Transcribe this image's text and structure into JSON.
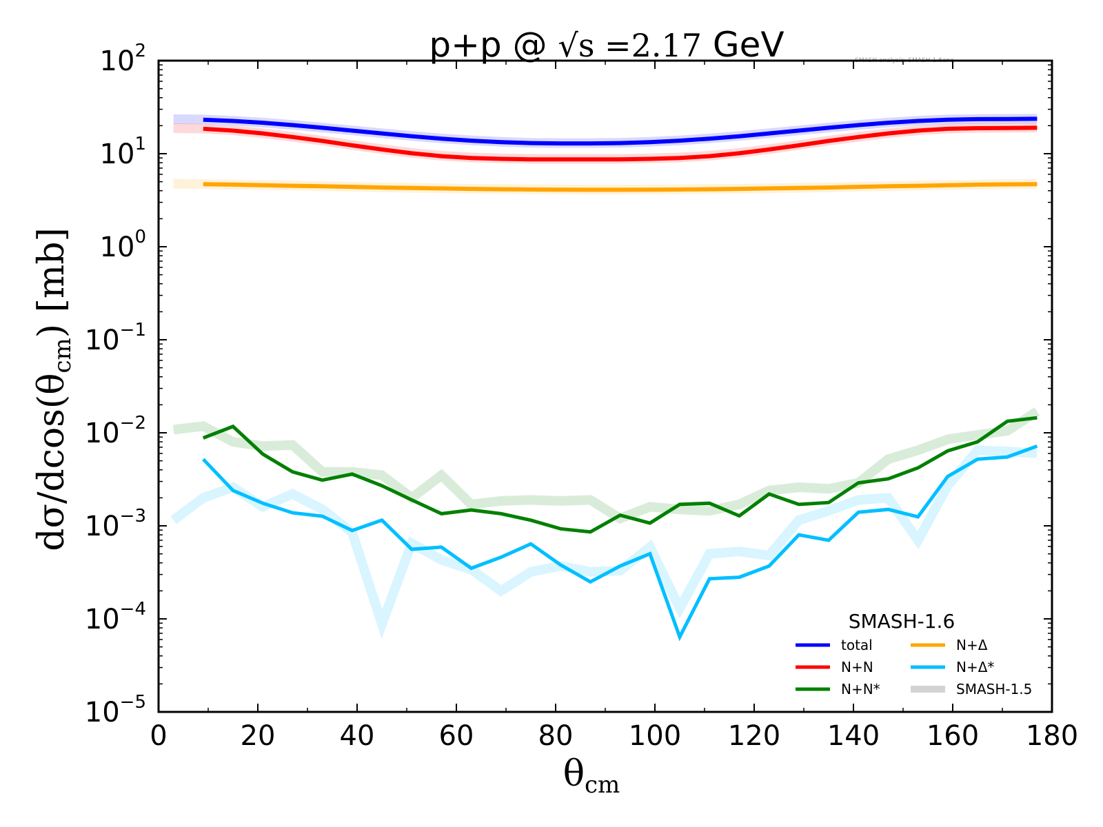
{
  "chart_data": {
    "type": "line",
    "title_prefix": "p+p @ ",
    "title_sqrt": "√s",
    "title_eq": " =2.17",
    "title_suffix": " GeV",
    "watermark": "SMASH analysis: SMASH-1.6ana",
    "xlabel_main": "θ",
    "xlabel_sub": "cm",
    "ylabel_prefix": "dσ/dcos(θ",
    "ylabel_sub": "cm",
    "ylabel_suffix": ") [mb]",
    "xlim": [
      0,
      180
    ],
    "ylim": [
      1e-05,
      100
    ],
    "yscale": "log",
    "grid": false,
    "xticks": [
      0,
      20,
      40,
      60,
      80,
      100,
      120,
      140,
      160,
      180
    ],
    "xtick_labels": [
      "0",
      "20",
      "40",
      "60",
      "80",
      "100",
      "120",
      "140",
      "160",
      "180"
    ],
    "yticks": [
      {
        "base": "10",
        "exp": "2"
      },
      {
        "base": "10",
        "exp": "1"
      },
      {
        "base": "10",
        "exp": "0"
      },
      {
        "base": "10",
        "exp": "−1"
      },
      {
        "base": "10",
        "exp": "−2"
      },
      {
        "base": "10",
        "exp": "−3"
      },
      {
        "base": "10",
        "exp": "−4"
      },
      {
        "base": "10",
        "exp": "−5"
      }
    ],
    "legend": {
      "title": "SMASH-1.6",
      "placement": "lower-right",
      "entries": [
        {
          "label": "total",
          "color": "#0000ff"
        },
        {
          "label": "N+Δ",
          "color": "#ffa500"
        },
        {
          "label": "N+N",
          "color": "#ff0000"
        },
        {
          "label": "N+Δ*",
          "color": "#00bfff"
        },
        {
          "label": "N+N*",
          "color": "#008000"
        },
        {
          "label": "SMASH-1.5",
          "color": "#d3d3d3"
        }
      ]
    },
    "x_new": [
      9,
      15,
      21,
      27,
      33,
      39,
      45,
      51,
      57,
      63,
      69,
      75,
      81,
      87,
      93,
      99,
      105,
      111,
      117,
      123,
      129,
      135,
      141,
      147,
      153,
      159,
      165,
      171,
      177
    ],
    "x_old": [
      3,
      9,
      15,
      21,
      27,
      33,
      39,
      45,
      51,
      57,
      63,
      69,
      75,
      81,
      87,
      93,
      99,
      105,
      111,
      117,
      123,
      129,
      135,
      141,
      147,
      153,
      159,
      165,
      171,
      177
    ],
    "series": [
      {
        "name": "total",
        "version": "SMASH-1.5",
        "color": "#0000ff",
        "faded": true,
        "values": [
          23.5,
          23.3,
          22.6,
          21.6,
          20.4,
          19.1,
          17.8,
          16.6,
          15.5,
          14.6,
          13.9,
          13.4,
          13.1,
          13.0,
          13.0,
          13.1,
          13.4,
          13.9,
          14.6,
          15.5,
          16.6,
          17.8,
          19.1,
          20.4,
          21.6,
          22.6,
          23.3,
          23.6,
          23.7,
          23.8
        ]
      },
      {
        "name": "N+N",
        "version": "SMASH-1.5",
        "color": "#ff0000",
        "faded": true,
        "values": [
          18.8,
          18.6,
          17.8,
          16.6,
          15.2,
          13.8,
          12.4,
          11.2,
          10.2,
          9.5,
          9.1,
          8.9,
          8.8,
          8.8,
          8.8,
          8.8,
          8.9,
          9.1,
          9.5,
          10.2,
          11.2,
          12.4,
          13.8,
          15.2,
          16.6,
          17.8,
          18.6,
          18.9,
          19.0,
          19.1
        ]
      },
      {
        "name": "N+Δ",
        "version": "SMASH-1.5",
        "color": "#ffa500",
        "faded": true,
        "values": [
          4.75,
          4.72,
          4.65,
          4.6,
          4.55,
          4.48,
          4.42,
          4.35,
          4.3,
          4.25,
          4.2,
          4.17,
          4.15,
          4.13,
          4.12,
          4.12,
          4.13,
          4.15,
          4.17,
          4.2,
          4.25,
          4.3,
          4.35,
          4.42,
          4.48,
          4.55,
          4.6,
          4.65,
          4.72,
          4.75
        ]
      },
      {
        "name": "N+N*",
        "version": "SMASH-1.5",
        "color": "#008000",
        "faded": true,
        "values": [
          0.0108,
          0.0118,
          0.008,
          0.0072,
          0.0074,
          0.0038,
          0.0038,
          0.0035,
          0.002,
          0.0035,
          0.0017,
          0.00185,
          0.0019,
          0.00185,
          0.0019,
          0.0012,
          0.0016,
          0.0015,
          0.00145,
          0.0017,
          0.0024,
          0.0026,
          0.0025,
          0.0029,
          0.0052,
          0.0065,
          0.0085,
          0.0095,
          0.0105,
          0.017
        ]
      },
      {
        "name": "N+Δ*",
        "version": "SMASH-1.5",
        "color": "#00bfff",
        "faded": true,
        "values": [
          0.00115,
          0.002,
          0.0026,
          0.0016,
          0.0022,
          0.0015,
          0.00085,
          8.8e-05,
          0.00065,
          0.00043,
          0.00034,
          0.0002,
          0.00032,
          0.00037,
          0.00032,
          0.00033,
          0.00059,
          0.00013,
          0.0005,
          0.00053,
          0.00048,
          0.00115,
          0.00145,
          0.0019,
          0.002,
          0.0007,
          0.0027,
          0.0065,
          0.0063,
          0.006
        ]
      },
      {
        "name": "total",
        "version": "SMASH-1.6",
        "color": "#0000ff",
        "faded": false,
        "values": [
          23.2,
          22.5,
          21.5,
          20.3,
          19.0,
          17.7,
          16.5,
          15.4,
          14.5,
          13.8,
          13.3,
          13.0,
          12.9,
          12.9,
          13.0,
          13.3,
          13.8,
          14.5,
          15.4,
          16.5,
          17.7,
          19.0,
          20.3,
          21.5,
          22.5,
          23.2,
          23.5,
          23.6,
          23.7
        ]
      },
      {
        "name": "N+N",
        "version": "SMASH-1.6",
        "color": "#ff0000",
        "faded": false,
        "values": [
          18.5,
          17.7,
          16.5,
          15.1,
          13.7,
          12.3,
          11.1,
          10.1,
          9.4,
          9.0,
          8.8,
          8.7,
          8.7,
          8.7,
          8.7,
          8.8,
          9.0,
          9.4,
          10.1,
          11.1,
          12.3,
          13.7,
          15.1,
          16.5,
          17.7,
          18.5,
          18.8,
          18.9,
          19.0
        ]
      },
      {
        "name": "N+Δ",
        "version": "SMASH-1.6",
        "color": "#ffa500",
        "faded": false,
        "values": [
          4.7,
          4.65,
          4.58,
          4.52,
          4.46,
          4.4,
          4.33,
          4.28,
          4.23,
          4.18,
          4.15,
          4.12,
          4.1,
          4.09,
          4.09,
          4.1,
          4.12,
          4.15,
          4.18,
          4.23,
          4.28,
          4.33,
          4.4,
          4.46,
          4.52,
          4.58,
          4.65,
          4.68,
          4.7
        ]
      },
      {
        "name": "N+N*",
        "version": "SMASH-1.6",
        "color": "#008000",
        "faded": false,
        "values": [
          0.0088,
          0.0117,
          0.0059,
          0.0038,
          0.0031,
          0.0036,
          0.0027,
          0.0019,
          0.00135,
          0.00148,
          0.00135,
          0.00115,
          0.00093,
          0.00086,
          0.0013,
          0.00107,
          0.0017,
          0.00175,
          0.00128,
          0.0022,
          0.0017,
          0.00178,
          0.0029,
          0.0032,
          0.0042,
          0.0064,
          0.008,
          0.0133,
          0.0145
        ]
      },
      {
        "name": "N+Δ*",
        "version": "SMASH-1.6",
        "color": "#00bfff",
        "faded": false,
        "values": [
          0.0052,
          0.0024,
          0.00175,
          0.00138,
          0.00127,
          0.00089,
          0.00115,
          0.00056,
          0.00059,
          0.00035,
          0.00046,
          0.00064,
          0.00038,
          0.00025,
          0.00037,
          0.0005,
          6.4e-05,
          0.00027,
          0.00028,
          0.00037,
          0.0008,
          0.0007,
          0.0014,
          0.0015,
          0.00125,
          0.0034,
          0.0052,
          0.0055,
          0.0072
        ]
      }
    ]
  }
}
